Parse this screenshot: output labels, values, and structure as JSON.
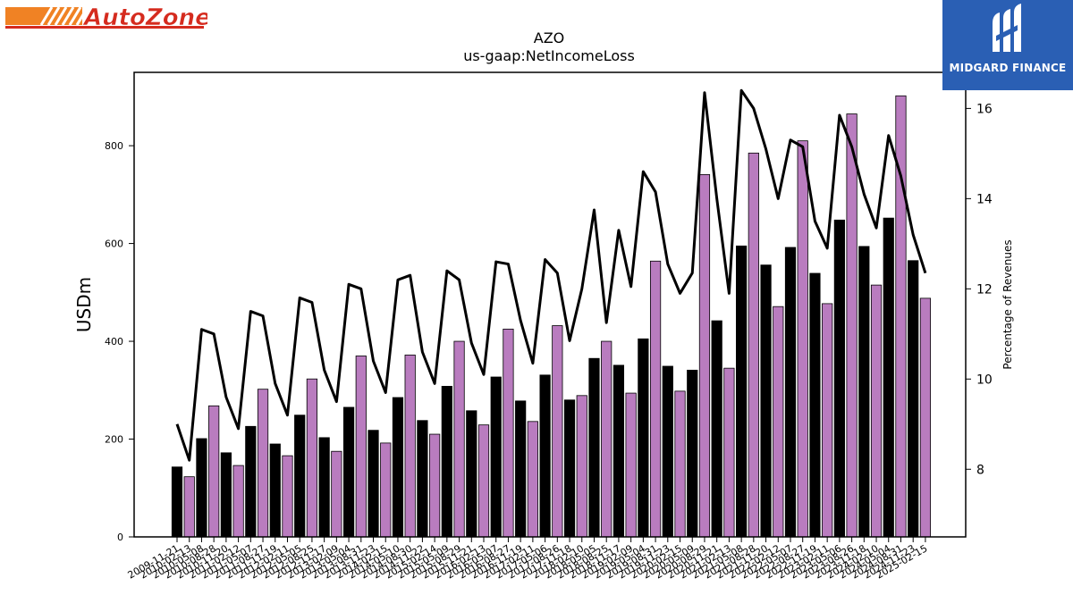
{
  "branding": {
    "left_logo_text": "AutoZone",
    "right_logo_text": "MIDGARD FINANCE"
  },
  "colors": {
    "bar_odd": "#000000",
    "bar_even": "#b97cbf",
    "line": "#000000",
    "brand_blue": "#2a5fb4",
    "autozone_orange": "#f08224",
    "autozone_red": "#d52b1e"
  },
  "chart_data": {
    "type": "bar",
    "title": "AZO",
    "subtitle": "us-gaap:NetIncomeLoss",
    "ylabel": "USDm",
    "y2label": "Percentage of Revenues",
    "ylim": [
      0,
      950
    ],
    "y2lim": [
      6.5,
      16.8
    ],
    "yticks": [
      0,
      200,
      400,
      600,
      800
    ],
    "y2ticks": [
      8,
      10,
      12,
      14,
      16
    ],
    "categories": [
      "2009-11-21",
      "2010-02-13",
      "2010-05-08",
      "2010-08-28",
      "2010-11-20",
      "2011-02-12",
      "2011-05-07",
      "2011-08-27",
      "2011-11-19",
      "2012-02-11",
      "2012-05-05",
      "2012-08-25",
      "2012-11-17",
      "2013-02-09",
      "2013-05-04",
      "2013-08-31",
      "2013-11-23",
      "2014-02-15",
      "2014-05-10",
      "2014-08-30",
      "2014-11-22",
      "2015-02-14",
      "2015-05-09",
      "2015-08-29",
      "2015-11-21",
      "2016-02-13",
      "2016-05-07",
      "2016-08-27",
      "2016-11-19",
      "2017-02-11",
      "2017-05-06",
      "2017-08-26",
      "2017-11-18",
      "2018-02-10",
      "2018-05-05",
      "2018-08-25",
      "2018-11-17",
      "2019-02-09",
      "2019-05-04",
      "2019-08-31",
      "2019-11-23",
      "2020-02-15",
      "2020-05-09",
      "2020-08-29",
      "2020-11-21",
      "2021-02-13",
      "2021-05-08",
      "2021-08-28",
      "2021-11-20",
      "2022-02-12",
      "2022-05-07",
      "2022-08-27",
      "2022-11-19",
      "2023-02-11",
      "2023-05-06",
      "2023-08-26",
      "2023-11-18",
      "2024-02-10",
      "2024-05-04",
      "2024-08-31",
      "2024-11-23",
      "2025-02-15"
    ],
    "series": [
      {
        "axis": "left",
        "type": "bar",
        "values": [
          143,
          123,
          201,
          268,
          172,
          146,
          226,
          302,
          190,
          166,
          249,
          323,
          203,
          175,
          265,
          370,
          218,
          192,
          285,
          372,
          238,
          210,
          308,
          400,
          258,
          229,
          327,
          425,
          278,
          236,
          331,
          432,
          280,
          289,
          365,
          400,
          351,
          294,
          405,
          564,
          349,
          298,
          341,
          741,
          442,
          345,
          595,
          785,
          556,
          471,
          592,
          810,
          539,
          477,
          648,
          865,
          594,
          515,
          652,
          902,
          565,
          488
        ]
      },
      {
        "axis": "right",
        "type": "line",
        "values": [
          9.0,
          8.2,
          11.1,
          11.0,
          9.6,
          8.9,
          11.5,
          11.4,
          9.9,
          9.2,
          11.8,
          11.7,
          10.2,
          9.5,
          12.1,
          12.0,
          10.4,
          9.7,
          12.2,
          12.3,
          10.6,
          9.9,
          12.4,
          12.2,
          10.8,
          10.1,
          12.6,
          12.55,
          11.3,
          10.35,
          12.65,
          12.35,
          10.85,
          12.0,
          13.75,
          11.25,
          13.3,
          12.05,
          14.6,
          14.15,
          12.55,
          11.9,
          12.35,
          16.35,
          14.0,
          11.9,
          16.4,
          16.0,
          15.1,
          14.0,
          15.3,
          15.15,
          13.5,
          12.9,
          15.85,
          15.15,
          14.1,
          13.35,
          15.4,
          14.5,
          13.2,
          12.35
        ]
      }
    ]
  }
}
